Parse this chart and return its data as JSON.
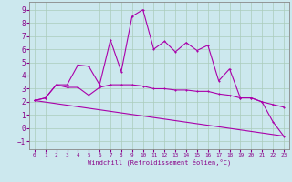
{
  "xlabel": "Windchill (Refroidissement éolien,°C)",
  "bg_color": "#cce8ee",
  "grid_color": "#aaccbb",
  "line_color": "#aa00aa",
  "x_ticks": [
    0,
    1,
    2,
    3,
    4,
    5,
    6,
    7,
    8,
    9,
    10,
    11,
    12,
    13,
    14,
    15,
    16,
    17,
    18,
    19,
    20,
    21,
    22,
    23
  ],
  "y_ticks": [
    -1,
    0,
    1,
    2,
    3,
    4,
    5,
    6,
    7,
    8,
    9
  ],
  "ylim": [
    -1.6,
    9.6
  ],
  "xlim": [
    -0.5,
    23.5
  ],
  "series1_x": [
    0,
    1,
    2,
    3,
    4,
    5,
    6,
    7,
    8,
    9,
    10,
    11,
    12,
    13,
    14,
    15,
    16,
    17,
    18,
    19,
    20,
    21,
    22,
    23
  ],
  "series1_y": [
    2.1,
    2.3,
    3.3,
    3.3,
    4.8,
    4.7,
    3.3,
    6.7,
    4.3,
    8.5,
    9.0,
    6.0,
    6.6,
    5.8,
    6.5,
    5.9,
    6.3,
    3.6,
    4.5,
    2.3,
    2.3,
    2.0,
    0.5,
    -0.6
  ],
  "series2_x": [
    0,
    1,
    2,
    3,
    4,
    5,
    6,
    7,
    8,
    9,
    10,
    11,
    12,
    13,
    14,
    15,
    16,
    17,
    18,
    19,
    20,
    21,
    22,
    23
  ],
  "series2_y": [
    2.1,
    2.3,
    3.3,
    3.1,
    3.1,
    2.5,
    3.1,
    3.3,
    3.3,
    3.3,
    3.2,
    3.0,
    3.0,
    2.9,
    2.9,
    2.8,
    2.8,
    2.6,
    2.5,
    2.3,
    2.3,
    2.0,
    1.8,
    1.6
  ],
  "series3_x": [
    0,
    23
  ],
  "series3_y": [
    2.1,
    -0.6
  ],
  "tick_label_color": "#880088",
  "xlabel_color": "#880088",
  "spine_color": "#888888",
  "xlabel_fontsize": 5.0,
  "ytick_fontsize": 5.5,
  "xtick_fontsize": 4.3,
  "lw": 0.8,
  "ms": 2.0
}
